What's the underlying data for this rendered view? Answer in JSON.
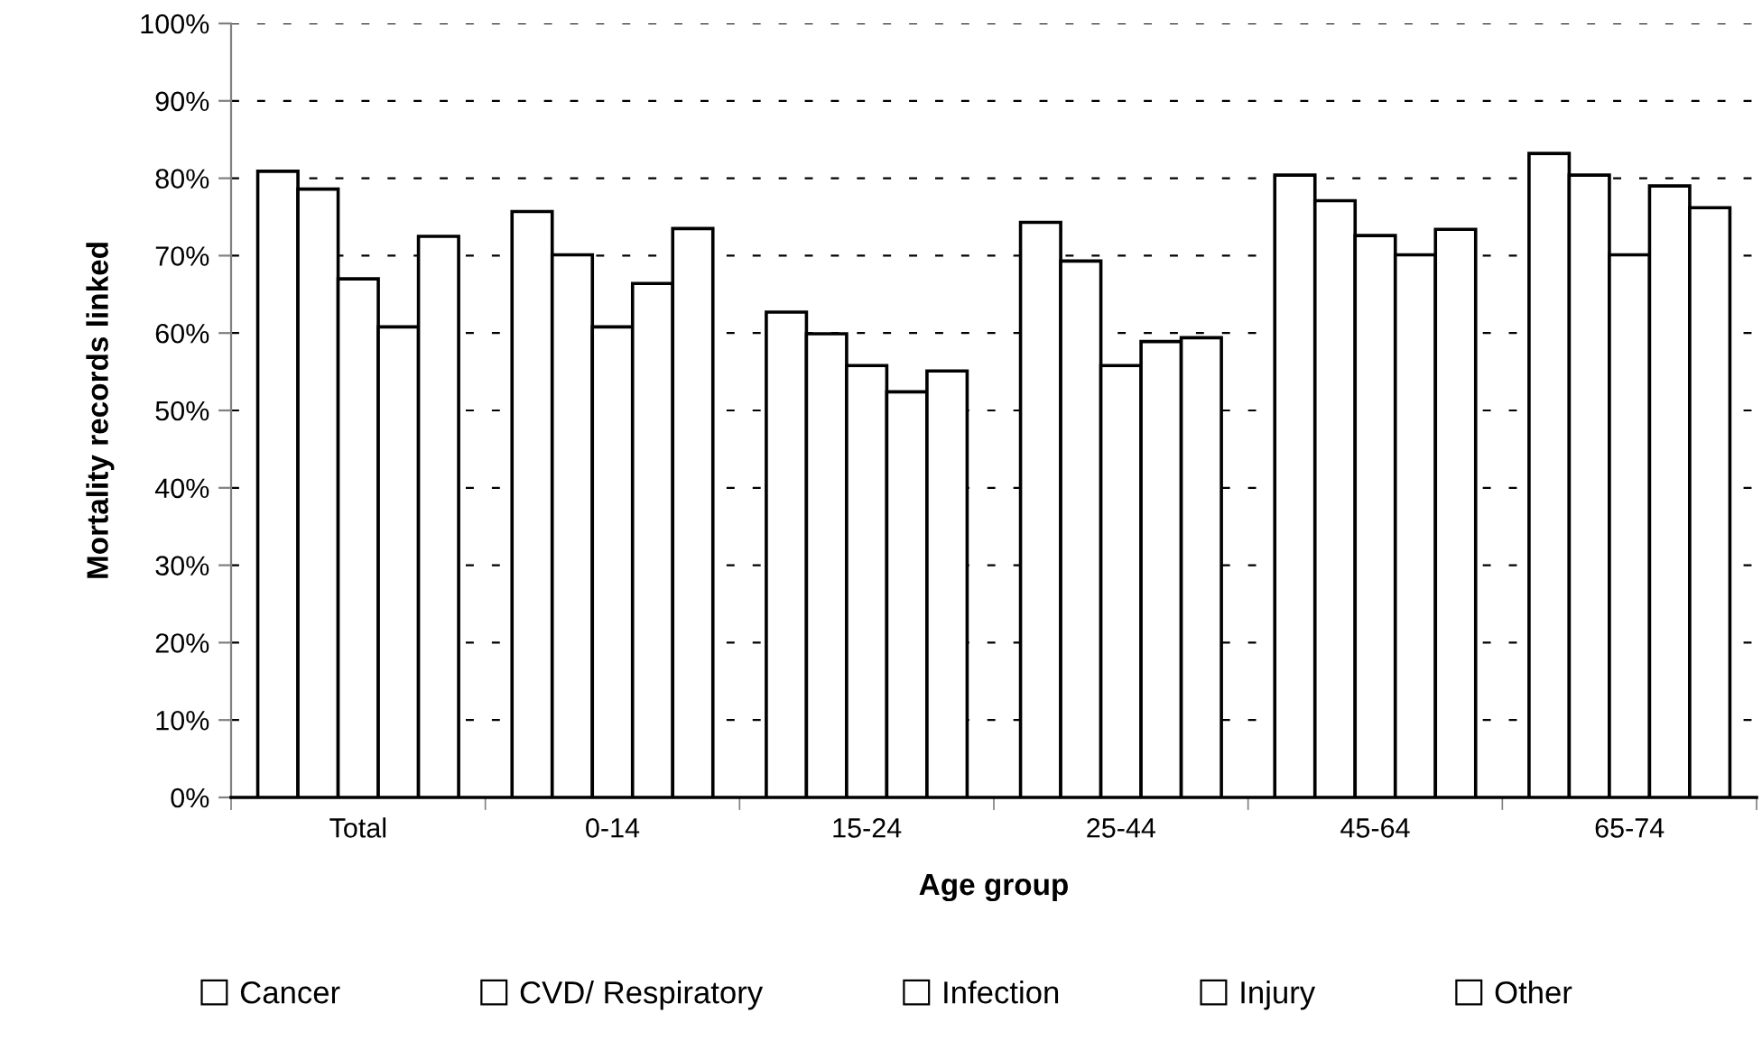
{
  "chart_data": {
    "type": "bar",
    "xlabel": "Age group",
    "ylabel": "Mortality records linked",
    "categories": [
      "Total",
      "0-14",
      "15-24",
      "25-44",
      "45-64",
      "65-74"
    ],
    "series": [
      {
        "name": "Cancer",
        "color": "#ffffff",
        "values": [
          80.9,
          75.7,
          62.7,
          74.3,
          80.4,
          83.2
        ]
      },
      {
        "name": "CVD/ Respiratory",
        "color": "#ffffff",
        "values": [
          78.6,
          70.1,
          59.9,
          69.3,
          77.1,
          80.4
        ]
      },
      {
        "name": "Infection",
        "color": "#ffffff",
        "values": [
          67.0,
          60.8,
          55.8,
          55.8,
          72.6,
          70.1
        ]
      },
      {
        "name": "Injury",
        "color": "#ffffff",
        "values": [
          60.8,
          66.4,
          52.4,
          58.9,
          70.1,
          79.0
        ]
      },
      {
        "name": "Other",
        "color": "#ffffff",
        "values": [
          72.5,
          73.5,
          55.1,
          59.4,
          73.4,
          76.2
        ]
      }
    ],
    "ylim": [
      0,
      100
    ],
    "yticks": [
      {
        "value": 0,
        "label": "0%"
      },
      {
        "value": 10,
        "label": "10%"
      },
      {
        "value": 20,
        "label": "20%"
      },
      {
        "value": 30,
        "label": "30%"
      },
      {
        "value": 40,
        "label": "40%"
      },
      {
        "value": 50,
        "label": "50%"
      },
      {
        "value": 60,
        "label": "60%"
      },
      {
        "value": 70,
        "label": "70%"
      },
      {
        "value": 80,
        "label": "80%"
      },
      {
        "value": 90,
        "label": "90%"
      },
      {
        "value": 100,
        "label": "100%"
      }
    ],
    "grid": "y",
    "legend": "bottom"
  }
}
